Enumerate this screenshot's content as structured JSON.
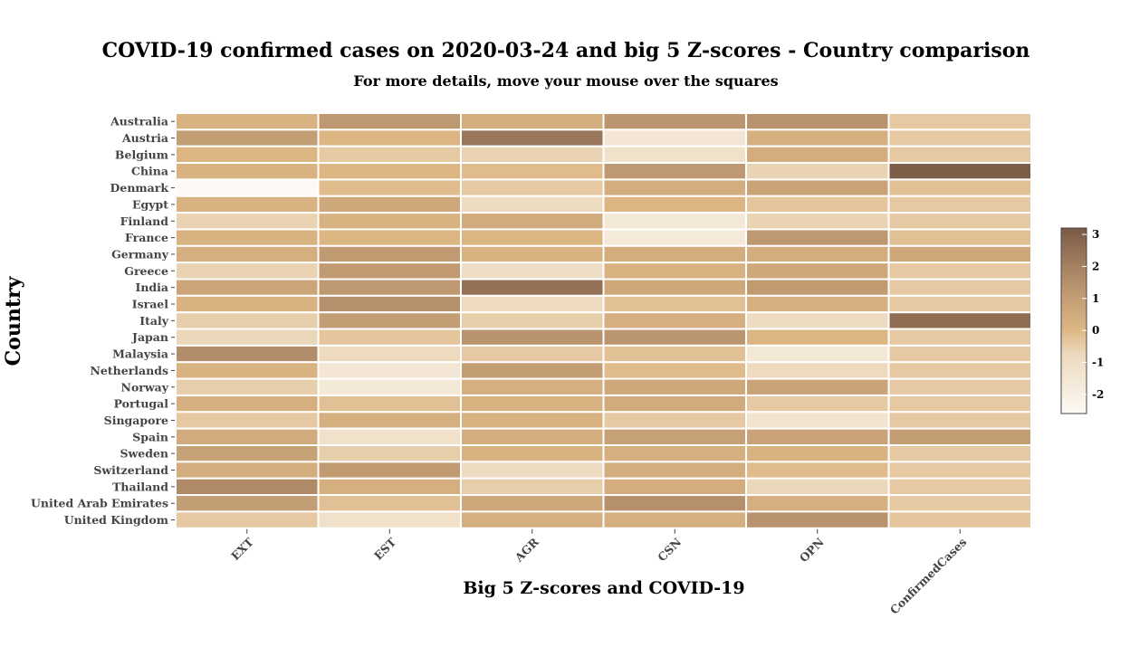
{
  "chart_data": {
    "type": "heatmap",
    "title": "COVID-19 confirmed cases on 2020-03-24 and big 5 Z-scores - Country comparison",
    "subtitle": "For more details, move your mouse over the squares",
    "xlabel": "Big 5 Z-scores and COVID-19",
    "ylabel": "Country",
    "x": [
      "EXT",
      "EST",
      "AGR",
      "CSN",
      "OPN",
      "ConfirmedCases"
    ],
    "y": [
      "Australia",
      "Austria",
      "Belgium",
      "China",
      "Denmark",
      "Egypt",
      "Finland",
      "France",
      "Germany",
      "Greece",
      "India",
      "Israel",
      "Italy",
      "Japan",
      "Malaysia",
      "Netherlands",
      "Norway",
      "Portugal",
      "Singapore",
      "Spain",
      "Sweden",
      "Switzerland",
      "Thailand",
      "United Arab Emirates",
      "United Kingdom"
    ],
    "values": [
      [
        0.2,
        1.2,
        0.4,
        1.3,
        1.4,
        -0.4
      ],
      [
        1.0,
        0.1,
        2.3,
        -1.5,
        0.3,
        -0.4
      ],
      [
        0.1,
        -0.4,
        -0.6,
        -1.2,
        0.4,
        -0.4
      ],
      [
        0.2,
        0.1,
        -0.1,
        1.2,
        -0.6,
        3.1
      ],
      [
        -2.6,
        -0.1,
        -0.4,
        0.4,
        0.8,
        -0.2
      ],
      [
        0.2,
        0.6,
        -0.9,
        0.1,
        -0.3,
        -0.4
      ],
      [
        -0.6,
        0.2,
        0.5,
        -1.6,
        -0.6,
        -0.4
      ],
      [
        0.2,
        0.1,
        0.1,
        -1.7,
        1.2,
        -0.2
      ],
      [
        0.3,
        1.1,
        0.2,
        0.4,
        0.4,
        0.6
      ],
      [
        -0.6,
        1.1,
        -1.0,
        0.2,
        0.6,
        -0.4
      ],
      [
        0.7,
        1.2,
        2.5,
        0.6,
        1.1,
        -0.4
      ],
      [
        0.2,
        1.5,
        -0.8,
        -0.2,
        0.3,
        -0.4
      ],
      [
        -0.5,
        1.0,
        -0.5,
        0.3,
        -0.9,
        2.6
      ],
      [
        -0.7,
        -0.3,
        1.4,
        1.3,
        0.1,
        -0.4
      ],
      [
        1.6,
        -0.8,
        -0.4,
        -0.2,
        -1.6,
        -0.4
      ],
      [
        0.2,
        -1.5,
        1.0,
        -0.1,
        -0.8,
        -0.4
      ],
      [
        -0.5,
        -1.6,
        0.3,
        0.6,
        0.8,
        -0.4
      ],
      [
        0.3,
        -0.2,
        0.2,
        0.5,
        -0.4,
        -0.4
      ],
      [
        -0.4,
        0.3,
        0.2,
        -0.4,
        -1.3,
        -0.4
      ],
      [
        0.5,
        -1.2,
        0.4,
        0.9,
        0.8,
        1.0
      ],
      [
        0.9,
        -0.5,
        0.2,
        0.3,
        0.2,
        -0.4
      ],
      [
        0.4,
        1.1,
        -0.9,
        0.4,
        -0.1,
        -0.4
      ],
      [
        1.7,
        0.3,
        -0.5,
        0.4,
        -0.7,
        -0.4
      ],
      [
        1.0,
        -0.2,
        0.6,
        1.5,
        0.3,
        -0.4
      ],
      [
        -0.4,
        -1.2,
        0.3,
        0.3,
        1.4,
        -0.3
      ]
    ],
    "colorbar": {
      "min": -2.6,
      "max": 3.2,
      "ticks": [
        3,
        2,
        1,
        0,
        -1,
        -2
      ]
    },
    "colors": {
      "low": "#fdfaf5",
      "mid": "#deb785",
      "high": "#7a5a46"
    },
    "legend_position": "right"
  }
}
